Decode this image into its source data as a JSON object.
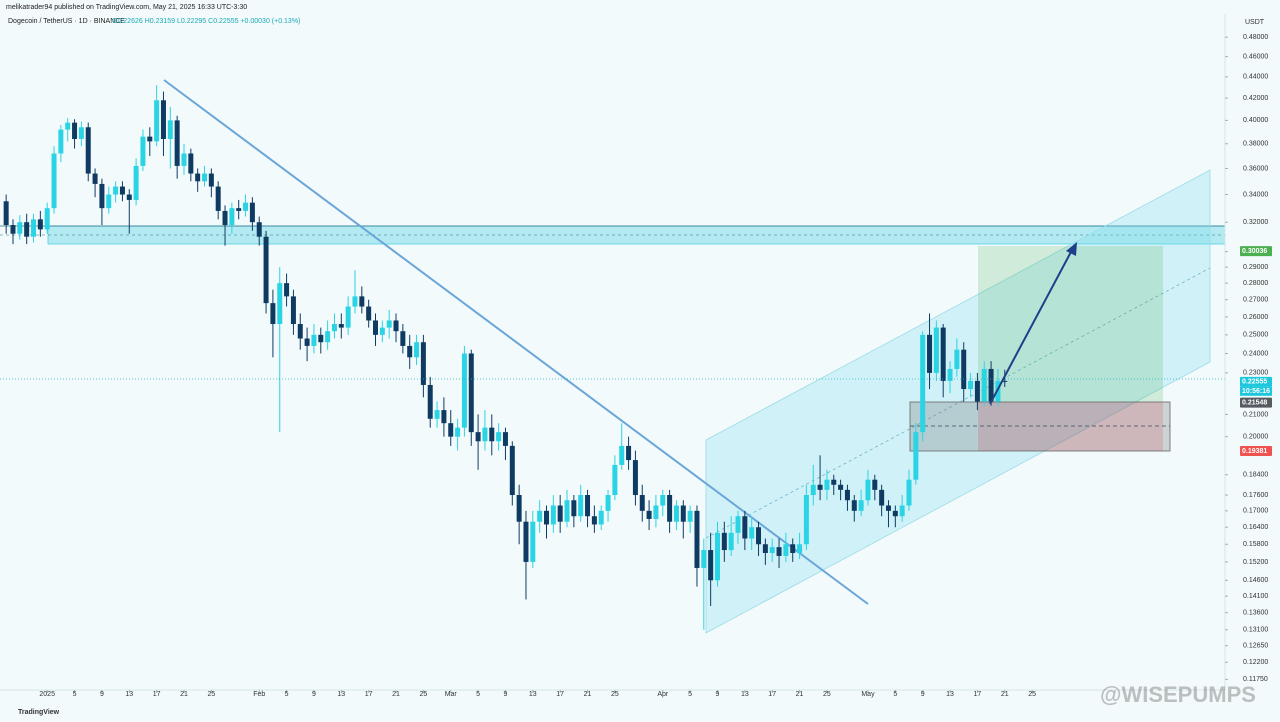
{
  "chart_data": {
    "type": "candlestick",
    "publisher": "melikatrader94 published on TradingView.com, May 21, 2025 16:33 UTC-3:30",
    "symbol": "Dogecoin / TetherUS · 1D · BINANCE",
    "ohlc_legend": "O0.22626 H0.23159 L0.22295 C0.22555 +0.00030 (+0.13%)",
    "y_axis_label": "USDT",
    "brand": "TradingView",
    "watermark": "@WISEPUMPS",
    "countdown": "10:56:16",
    "log_scale": true,
    "up_color": "#2bd4e4",
    "down_color": "#0f3b63",
    "x": [
      -6,
      -5,
      -4,
      -3,
      -2,
      -1,
      0,
      1,
      2,
      3,
      4,
      5,
      6,
      7,
      8,
      9,
      10,
      11,
      12,
      13,
      14,
      15,
      16,
      17,
      18,
      19,
      20,
      21,
      22,
      23,
      24,
      25,
      26,
      27,
      28,
      29,
      30,
      31,
      32,
      33,
      34,
      35,
      36,
      37,
      38,
      39,
      40,
      41,
      42,
      43,
      44,
      45,
      46,
      47,
      48,
      49,
      50,
      51,
      52,
      53,
      54,
      55,
      56,
      57,
      58,
      59,
      60,
      61,
      62,
      63,
      64,
      65,
      66,
      67,
      68,
      69,
      70,
      71,
      72,
      73,
      74,
      75,
      76,
      77,
      78,
      79,
      80,
      81,
      82,
      83,
      84,
      85,
      86,
      87,
      88,
      89,
      90,
      91,
      92,
      93,
      94,
      95,
      96,
      97,
      98,
      99,
      100,
      101,
      102,
      103,
      104,
      105,
      106,
      107,
      108,
      109,
      110,
      111,
      112,
      113,
      114,
      115,
      116,
      117,
      118,
      119,
      120,
      121,
      122,
      123,
      124,
      125,
      126,
      127,
      128,
      129,
      130,
      131,
      132,
      133,
      134,
      135,
      136,
      137,
      138,
      139,
      140
    ],
    "open": [
      0.335,
      0.318,
      0.312,
      0.32,
      0.31,
      0.322,
      0.315,
      0.33,
      0.372,
      0.392,
      0.398,
      0.384,
      0.394,
      0.356,
      0.348,
      0.33,
      0.34,
      0.346,
      0.34,
      0.336,
      0.362,
      0.386,
      0.382,
      0.418,
      0.384,
      0.4,
      0.362,
      0.372,
      0.356,
      0.35,
      0.356,
      0.346,
      0.328,
      0.318,
      0.33,
      0.328,
      0.334,
      0.32,
      0.31,
      0.268,
      0.256,
      0.28,
      0.272,
      0.256,
      0.248,
      0.244,
      0.25,
      0.246,
      0.252,
      0.256,
      0.254,
      0.266,
      0.272,
      0.266,
      0.258,
      0.25,
      0.254,
      0.258,
      0.252,
      0.244,
      0.238,
      0.246,
      0.224,
      0.208,
      0.212,
      0.206,
      0.2,
      0.204,
      0.24,
      0.202,
      0.198,
      0.204,
      0.198,
      0.202,
      0.196,
      0.176,
      0.166,
      0.152,
      0.166,
      0.17,
      0.165,
      0.172,
      0.166,
      0.174,
      0.168,
      0.176,
      0.168,
      0.165,
      0.17,
      0.176,
      0.188,
      0.196,
      0.19,
      0.176,
      0.17,
      0.167,
      0.172,
      0.176,
      0.166,
      0.172,
      0.166,
      0.17,
      0.15,
      0.156,
      0.146,
      0.162,
      0.156,
      0.162,
      0.168,
      0.16,
      0.164,
      0.158,
      0.155,
      0.157,
      0.154,
      0.158,
      0.155,
      0.158,
      0.176,
      0.18,
      0.178,
      0.182,
      0.18,
      0.178,
      0.174,
      0.17,
      0.174,
      0.182,
      0.178,
      0.172,
      0.17,
      0.168,
      0.172,
      0.182,
      0.202,
      0.25,
      0.23,
      0.254,
      0.226,
      0.232,
      0.242,
      0.222,
      0.226,
      0.216,
      0.232,
      0.216,
      0.226
    ],
    "high": [
      0.34,
      0.322,
      0.325,
      0.326,
      0.326,
      0.328,
      0.334,
      0.378,
      0.396,
      0.402,
      0.401,
      0.399,
      0.398,
      0.36,
      0.352,
      0.346,
      0.35,
      0.35,
      0.344,
      0.368,
      0.392,
      0.394,
      0.432,
      0.426,
      0.412,
      0.404,
      0.38,
      0.376,
      0.36,
      0.362,
      0.36,
      0.35,
      0.332,
      0.334,
      0.336,
      0.34,
      0.338,
      0.324,
      0.314,
      0.276,
      0.29,
      0.286,
      0.276,
      0.262,
      0.254,
      0.256,
      0.254,
      0.258,
      0.262,
      0.262,
      0.272,
      0.288,
      0.278,
      0.27,
      0.262,
      0.258,
      0.264,
      0.262,
      0.256,
      0.25,
      0.25,
      0.25,
      0.228,
      0.216,
      0.218,
      0.212,
      0.208,
      0.244,
      0.242,
      0.21,
      0.212,
      0.21,
      0.206,
      0.204,
      0.198,
      0.18,
      0.17,
      0.17,
      0.174,
      0.172,
      0.176,
      0.176,
      0.178,
      0.176,
      0.18,
      0.178,
      0.172,
      0.172,
      0.178,
      0.192,
      0.206,
      0.2,
      0.194,
      0.18,
      0.174,
      0.176,
      0.178,
      0.178,
      0.174,
      0.174,
      0.172,
      0.172,
      0.16,
      0.162,
      0.166,
      0.166,
      0.168,
      0.17,
      0.17,
      0.168,
      0.166,
      0.16,
      0.16,
      0.16,
      0.162,
      0.16,
      0.162,
      0.18,
      0.188,
      0.192,
      0.186,
      0.184,
      0.182,
      0.18,
      0.176,
      0.178,
      0.186,
      0.184,
      0.18,
      0.174,
      0.172,
      0.176,
      0.186,
      0.206,
      0.252,
      0.262,
      0.258,
      0.256,
      0.236,
      0.248,
      0.246,
      0.23,
      0.23,
      0.236,
      0.236,
      0.232,
      0.2316
    ],
    "low": [
      0.312,
      0.305,
      0.308,
      0.305,
      0.306,
      0.31,
      0.312,
      0.326,
      0.365,
      0.382,
      0.376,
      0.378,
      0.35,
      0.338,
      0.318,
      0.326,
      0.334,
      0.335,
      0.312,
      0.332,
      0.358,
      0.37,
      0.378,
      0.37,
      0.36,
      0.352,
      0.355,
      0.35,
      0.342,
      0.346,
      0.338,
      0.322,
      0.304,
      0.312,
      0.322,
      0.324,
      0.314,
      0.304,
      0.262,
      0.238,
      0.202,
      0.266,
      0.25,
      0.242,
      0.236,
      0.24,
      0.24,
      0.242,
      0.248,
      0.248,
      0.25,
      0.262,
      0.262,
      0.254,
      0.244,
      0.246,
      0.248,
      0.246,
      0.24,
      0.232,
      0.234,
      0.218,
      0.204,
      0.204,
      0.2,
      0.196,
      0.194,
      0.2,
      0.196,
      0.186,
      0.194,
      0.192,
      0.194,
      0.19,
      0.172,
      0.158,
      0.14,
      0.15,
      0.162,
      0.16,
      0.162,
      0.162,
      0.164,
      0.164,
      0.166,
      0.164,
      0.162,
      0.163,
      0.166,
      0.174,
      0.186,
      0.186,
      0.172,
      0.166,
      0.163,
      0.164,
      0.168,
      0.162,
      0.163,
      0.16,
      0.162,
      0.144,
      0.131,
      0.138,
      0.144,
      0.152,
      0.154,
      0.158,
      0.156,
      0.156,
      0.154,
      0.151,
      0.152,
      0.15,
      0.152,
      0.152,
      0.153,
      0.156,
      0.172,
      0.174,
      0.174,
      0.176,
      0.174,
      0.17,
      0.166,
      0.168,
      0.172,
      0.174,
      0.168,
      0.164,
      0.164,
      0.166,
      0.17,
      0.18,
      0.198,
      0.222,
      0.226,
      0.218,
      0.22,
      0.228,
      0.216,
      0.218,
      0.212,
      0.214,
      0.214,
      0.214,
      0.223
    ],
    "close": [
      0.318,
      0.312,
      0.32,
      0.31,
      0.322,
      0.315,
      0.33,
      0.372,
      0.392,
      0.398,
      0.384,
      0.394,
      0.356,
      0.348,
      0.33,
      0.34,
      0.346,
      0.34,
      0.336,
      0.362,
      0.386,
      0.382,
      0.418,
      0.384,
      0.4,
      0.362,
      0.372,
      0.356,
      0.35,
      0.356,
      0.346,
      0.328,
      0.318,
      0.33,
      0.328,
      0.334,
      0.32,
      0.31,
      0.268,
      0.256,
      0.28,
      0.272,
      0.256,
      0.248,
      0.244,
      0.25,
      0.246,
      0.252,
      0.256,
      0.254,
      0.266,
      0.272,
      0.266,
      0.258,
      0.25,
      0.254,
      0.258,
      0.252,
      0.244,
      0.238,
      0.246,
      0.224,
      0.208,
      0.212,
      0.206,
      0.2,
      0.204,
      0.24,
      0.202,
      0.198,
      0.204,
      0.198,
      0.202,
      0.196,
      0.176,
      0.166,
      0.152,
      0.166,
      0.17,
      0.165,
      0.172,
      0.166,
      0.174,
      0.168,
      0.176,
      0.168,
      0.165,
      0.17,
      0.176,
      0.188,
      0.196,
      0.19,
      0.176,
      0.17,
      0.167,
      0.172,
      0.176,
      0.166,
      0.172,
      0.166,
      0.17,
      0.15,
      0.156,
      0.146,
      0.162,
      0.156,
      0.162,
      0.168,
      0.16,
      0.164,
      0.158,
      0.155,
      0.157,
      0.154,
      0.158,
      0.155,
      0.158,
      0.176,
      0.18,
      0.178,
      0.182,
      0.18,
      0.178,
      0.174,
      0.17,
      0.174,
      0.182,
      0.178,
      0.172,
      0.17,
      0.168,
      0.172,
      0.182,
      0.202,
      0.25,
      0.23,
      0.254,
      0.226,
      0.232,
      0.242,
      0.222,
      0.226,
      0.216,
      0.232,
      0.216,
      0.226,
      0.2256
    ],
    "xlim": [
      -6.9,
      172.2
    ],
    "ylim": [
      0.1148,
      0.505
    ],
    "xticks": [
      {
        "value": 0,
        "label": "2025"
      },
      {
        "value": 4,
        "label": "5"
      },
      {
        "value": 8,
        "label": "9"
      },
      {
        "value": 12,
        "label": "13"
      },
      {
        "value": 16,
        "label": "17"
      },
      {
        "value": 20,
        "label": "21"
      },
      {
        "value": 24,
        "label": "25"
      },
      {
        "value": 31,
        "label": "Feb"
      },
      {
        "value": 35,
        "label": "5"
      },
      {
        "value": 39,
        "label": "9"
      },
      {
        "value": 43,
        "label": "13"
      },
      {
        "value": 47,
        "label": "17"
      },
      {
        "value": 51,
        "label": "21"
      },
      {
        "value": 55,
        "label": "25"
      },
      {
        "value": 59,
        "label": "Mar"
      },
      {
        "value": 63,
        "label": "5"
      },
      {
        "value": 67,
        "label": "9"
      },
      {
        "value": 71,
        "label": "13"
      },
      {
        "value": 75,
        "label": "17"
      },
      {
        "value": 79,
        "label": "21"
      },
      {
        "value": 83,
        "label": "25"
      },
      {
        "value": 90,
        "label": "Apr"
      },
      {
        "value": 94,
        "label": "5"
      },
      {
        "value": 98,
        "label": "9"
      },
      {
        "value": 102,
        "label": "13"
      },
      {
        "value": 106,
        "label": "17"
      },
      {
        "value": 110,
        "label": "21"
      },
      {
        "value": 114,
        "label": "25"
      },
      {
        "value": 120,
        "label": "May"
      },
      {
        "value": 124,
        "label": "5"
      },
      {
        "value": 128,
        "label": "9"
      },
      {
        "value": 132,
        "label": "13"
      },
      {
        "value": 136,
        "label": "17"
      },
      {
        "value": 140,
        "label": "21"
      },
      {
        "value": 144,
        "label": "25"
      }
    ],
    "yticks": [
      {
        "value": 0.48,
        "label": "0.48000"
      },
      {
        "value": 0.46,
        "label": "0.46000"
      },
      {
        "value": 0.44,
        "label": "0.44000"
      },
      {
        "value": 0.42,
        "label": "0.42000"
      },
      {
        "value": 0.4,
        "label": "0.40000"
      },
      {
        "value": 0.38,
        "label": "0.38000"
      },
      {
        "value": 0.36,
        "label": "0.36000"
      },
      {
        "value": 0.34,
        "label": "0.34000"
      },
      {
        "value": 0.32,
        "label": "0.32000"
      },
      {
        "value": 0.3,
        "label": "0.30000"
      },
      {
        "value": 0.29,
        "label": "0.29000"
      },
      {
        "value": 0.28,
        "label": "0.28000"
      },
      {
        "value": 0.27,
        "label": "0.27000"
      },
      {
        "value": 0.26,
        "label": "0.26000"
      },
      {
        "value": 0.25,
        "label": "0.25000"
      },
      {
        "value": 0.24,
        "label": "0.24000"
      },
      {
        "value": 0.23,
        "label": "0.23000"
      },
      {
        "value": 0.21,
        "label": "0.21000"
      },
      {
        "value": 0.2,
        "label": "0.20000"
      },
      {
        "value": 0.184,
        "label": "0.18400"
      },
      {
        "value": 0.176,
        "label": "0.17600"
      },
      {
        "value": 0.17,
        "label": "0.17000"
      },
      {
        "value": 0.164,
        "label": "0.16400"
      },
      {
        "value": 0.158,
        "label": "0.15800"
      },
      {
        "value": 0.152,
        "label": "0.15200"
      },
      {
        "value": 0.146,
        "label": "0.14600"
      },
      {
        "value": 0.141,
        "label": "0.14100"
      },
      {
        "value": 0.136,
        "label": "0.13600"
      },
      {
        "value": 0.131,
        "label": "0.13100"
      },
      {
        "value": 0.1265,
        "label": "0.12650"
      },
      {
        "value": 0.122,
        "label": "0.12200"
      },
      {
        "value": 0.1175,
        "label": "0.11750"
      }
    ],
    "price_labels": [
      0.30036,
      0.22555,
      0.21548,
      0.19381
    ],
    "price_label_colors": [
      "#4caf50",
      "#1ec8dc",
      "#555b61",
      "#ef5350"
    ]
  }
}
